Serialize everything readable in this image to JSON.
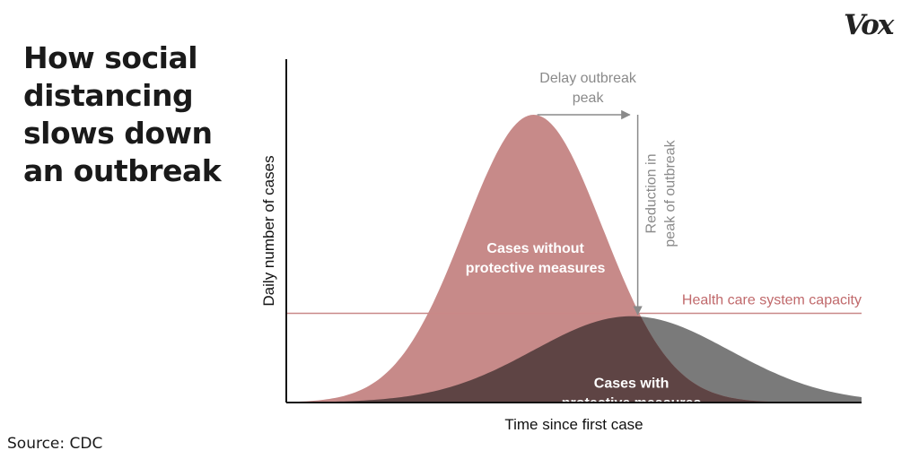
{
  "header": {
    "title": "How social distancing slows down an outbreak",
    "logo": "Vox"
  },
  "footer": {
    "source": "Source: CDC"
  },
  "colors": {
    "without_measures": "#c78a89",
    "with_measures": "#7a7a7a",
    "overlap": "#5e4444",
    "capacity_line": "#c98888",
    "annotation": "#8a8a8a"
  },
  "chart_data": {
    "type": "area",
    "title": "How social distancing slows down an outbreak",
    "xlabel": "Time since first case",
    "ylabel": "Daily number of cases",
    "xlim": [
      0,
      100
    ],
    "ylim": [
      0,
      100
    ],
    "grid": false,
    "legend": "none",
    "series": [
      {
        "name": "Cases without protective measures",
        "peak_x": 43,
        "peak_y": 100,
        "spread": 12
      },
      {
        "name": "Cases with protective measures",
        "peak_x": 60,
        "peak_y": 30,
        "spread": 17
      }
    ],
    "reference_lines": [
      {
        "label": "Health care system capacity",
        "y": 31
      }
    ],
    "annotations": {
      "delay_line1": "Delay outbreak",
      "delay_line2": "peak",
      "reduction_line1": "Reduction in",
      "reduction_line2": "peak of outbreak",
      "without_line1": "Cases without",
      "without_line2": "protective measures",
      "with_line1": "Cases with",
      "with_line2": "protective measures",
      "capacity": "Health care system capacity"
    }
  }
}
